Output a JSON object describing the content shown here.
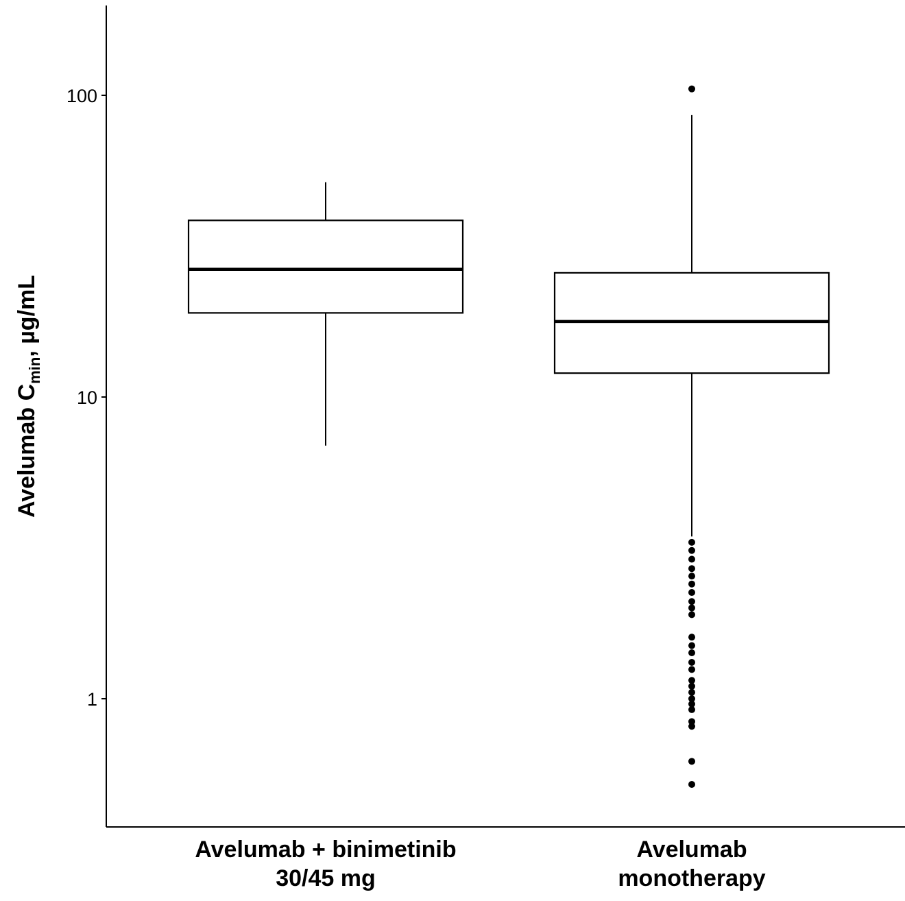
{
  "chart_data": {
    "type": "box",
    "y_scale": "log10",
    "ylim": [
      0.42,
      210
    ],
    "yticks": [
      1,
      10,
      100
    ],
    "ytick_labels": [
      "1",
      "10",
      "100"
    ],
    "ylabel": {
      "prefix": "Avelumab C",
      "subscript": "min",
      "suffix": ", µg/mL"
    },
    "grid": false,
    "categories": [
      {
        "id": "combo",
        "label_lines": [
          "Avelumab + binimetinib",
          "30/45 mg"
        ]
      },
      {
        "id": "mono",
        "label_lines": [
          "Avelumab",
          "monotherapy"
        ]
      }
    ],
    "boxes": [
      {
        "category": "combo",
        "whisker_low": 6.9,
        "q1": 19.0,
        "median": 26.5,
        "q3": 38.5,
        "whisker_high": 51.5,
        "outliers": []
      },
      {
        "category": "mono",
        "whisker_low": 3.45,
        "q1": 12.0,
        "median": 17.8,
        "q3": 25.8,
        "whisker_high": 86.0,
        "outliers": [
          105,
          3.3,
          3.1,
          2.9,
          2.7,
          2.55,
          2.4,
          2.25,
          2.1,
          2.0,
          1.9,
          1.6,
          1.5,
          1.42,
          1.32,
          1.25,
          1.15,
          1.1,
          1.05,
          1.0,
          0.96,
          0.92,
          0.84,
          0.81,
          0.62,
          0.52
        ]
      }
    ],
    "colors": {
      "ink": "#000000",
      "box_fill": "#ffffff"
    }
  }
}
